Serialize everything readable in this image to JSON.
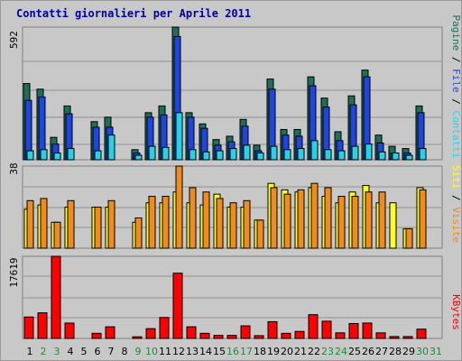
{
  "title": "Contatti giornalieri per Aprile 2011",
  "colors": {
    "background": "#c8c8c8",
    "title": "#0000a0",
    "grid": "#909090",
    "pagine": "#1e6e5a",
    "file": "#1e46dc",
    "contatti": "#28d2e6",
    "siti": "#ffff28",
    "visite": "#f08c1e",
    "kbytes": "#ff0000",
    "weekday": "#000000",
    "weekend": "#1e8c3c"
  },
  "legend": {
    "top": {
      "a": "Pagine",
      "s1": " / ",
      "b": "File",
      "s2": " / ",
      "c": "Contatti"
    },
    "mid": {
      "a": "Siti",
      "s1": " / ",
      "b": "Visite"
    },
    "bottom": {
      "a": "KBytes"
    }
  },
  "chart_data": [
    {
      "type": "bar",
      "name": "hits",
      "ymax_label": "592",
      "ymax": 592,
      "categories": [
        "1",
        "2",
        "3",
        "4",
        "5",
        "6",
        "7",
        "8",
        "9",
        "10",
        "11",
        "12",
        "13",
        "14",
        "15",
        "16",
        "17",
        "18",
        "19",
        "20",
        "21",
        "22",
        "23",
        "24",
        "25",
        "26",
        "27",
        "28",
        "29",
        "30",
        "31"
      ],
      "weekend": [
        false,
        true,
        true,
        false,
        false,
        false,
        false,
        false,
        true,
        true,
        false,
        false,
        false,
        false,
        false,
        true,
        true,
        false,
        false,
        false,
        false,
        false,
        true,
        true,
        false,
        false,
        false,
        false,
        false,
        true,
        true
      ],
      "series": [
        {
          "name": "Pagine",
          "values": [
            340,
            315,
            100,
            240,
            0,
            170,
            190,
            0,
            45,
            210,
            240,
            592,
            210,
            160,
            90,
            105,
            180,
            65,
            360,
            135,
            135,
            370,
            275,
            125,
            285,
            400,
            110,
            60,
            50,
            240,
            0
          ]
        },
        {
          "name": "File",
          "values": [
            265,
            280,
            70,
            205,
            0,
            145,
            145,
            0,
            30,
            190,
            200,
            550,
            190,
            140,
            65,
            80,
            150,
            40,
            315,
            110,
            105,
            330,
            235,
            85,
            245,
            370,
            75,
            30,
            30,
            210,
            0
          ]
        },
        {
          "name": "Contatti",
          "values": [
            40,
            45,
            30,
            50,
            0,
            40,
            110,
            0,
            20,
            60,
            55,
            210,
            45,
            35,
            40,
            50,
            65,
            30,
            60,
            45,
            50,
            85,
            45,
            40,
            60,
            70,
            35,
            30,
            20,
            50,
            0
          ]
        }
      ]
    },
    {
      "type": "bar",
      "name": "visits",
      "ymax_label": "38",
      "ymax": 38,
      "categories": [
        "1",
        "2",
        "3",
        "4",
        "5",
        "6",
        "7",
        "8",
        "9",
        "10",
        "11",
        "12",
        "13",
        "14",
        "15",
        "16",
        "17",
        "18",
        "19",
        "20",
        "21",
        "22",
        "23",
        "24",
        "25",
        "26",
        "27",
        "28",
        "29",
        "30",
        "31"
      ],
      "series": [
        {
          "name": "Siti",
          "values": [
            18,
            20,
            12,
            19,
            0,
            19,
            19,
            0,
            12,
            21,
            21,
            26,
            21,
            20,
            25,
            19,
            19,
            13,
            30,
            27,
            26,
            28,
            24,
            21,
            26,
            29,
            21,
            21,
            9,
            28,
            0
          ]
        },
        {
          "name": "Visite",
          "values": [
            22,
            23,
            12,
            22,
            0,
            19,
            22,
            0,
            14,
            24,
            24,
            38,
            28,
            26,
            23,
            21,
            22,
            13,
            28,
            25,
            27,
            30,
            28,
            24,
            24,
            26,
            26,
            0,
            9,
            27,
            0
          ]
        }
      ]
    },
    {
      "type": "bar",
      "name": "traffic",
      "ymax_label": "17619",
      "ymax": 17619,
      "categories": [
        "1",
        "2",
        "3",
        "4",
        "5",
        "6",
        "7",
        "8",
        "9",
        "10",
        "11",
        "12",
        "13",
        "14",
        "15",
        "16",
        "17",
        "18",
        "19",
        "20",
        "21",
        "22",
        "23",
        "24",
        "25",
        "26",
        "27",
        "28",
        "29",
        "30",
        "31"
      ],
      "series": [
        {
          "name": "KBytes",
          "values": [
            4600,
            5500,
            17619,
            3300,
            0,
            1100,
            2500,
            0,
            350,
            2100,
            4500,
            14000,
            2500,
            1100,
            650,
            650,
            2700,
            600,
            3600,
            1100,
            1500,
            5100,
            3700,
            1200,
            3200,
            3300,
            1200,
            400,
            400,
            2000,
            0
          ]
        }
      ]
    }
  ]
}
